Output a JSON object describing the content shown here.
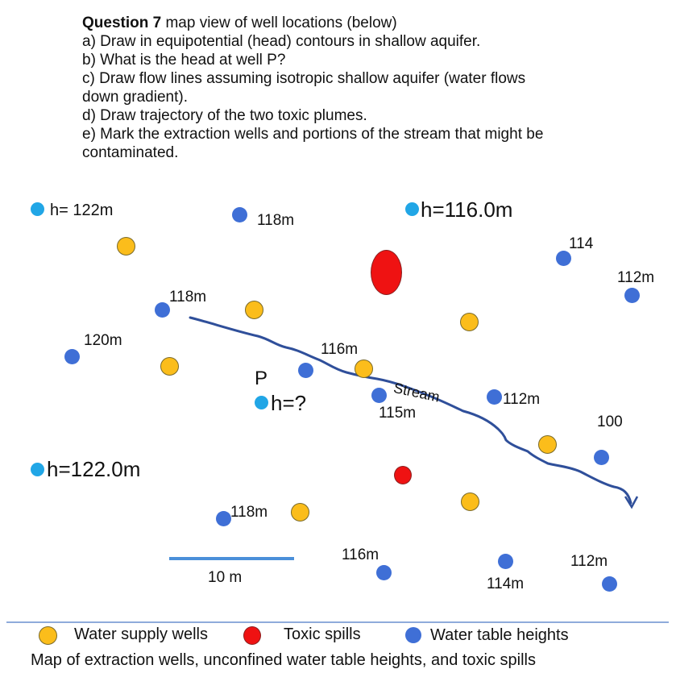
{
  "question": {
    "title_bold": "Question 7",
    "title_rest": " map view of well locations (below)",
    "lines": [
      "a) Draw in equipotential (head) contours in shallow aquifer.",
      "b) What is the head at well P?",
      "c) Draw flow lines assuming isotropic shallow aquifer (water flows",
      "down gradient).",
      "d) Draw trajectory of the two toxic plumes.",
      "e) Mark the extraction wells and portions of the stream that might be",
      "contaminated."
    ]
  },
  "map": {
    "heads": {
      "h122_top": "h= 122m",
      "h116_top": "h=116.0m",
      "h122_left": "h=122.0m",
      "p_label": "P",
      "p_head": "h=?"
    },
    "labels": {
      "l118_top": "118m",
      "l114_top": "114",
      "l112_right": "112m",
      "l118_left": "118m",
      "l120": "120m",
      "l116_mid": "116m",
      "stream": "Stream",
      "l112_mid": "112m",
      "l115": "115m",
      "l100": "100",
      "l118_bottom": "118m",
      "l116_bottom": "116m",
      "l112_bottom": "112m",
      "l114_bottom": "114m",
      "scale": "10 m"
    }
  },
  "legend": {
    "supply": "Water supply wells",
    "spills": "Toxic spills",
    "table": "Water table heights",
    "caption": "Map of extraction wells, unconfined water table heights, and toxic spills"
  },
  "colors": {
    "water_supply": "#fbbd1b",
    "toxic_spill": "#ef1212",
    "water_table": "#3f6fd6",
    "known_head": "#21a6e6",
    "stream": "#2f4f9a"
  }
}
